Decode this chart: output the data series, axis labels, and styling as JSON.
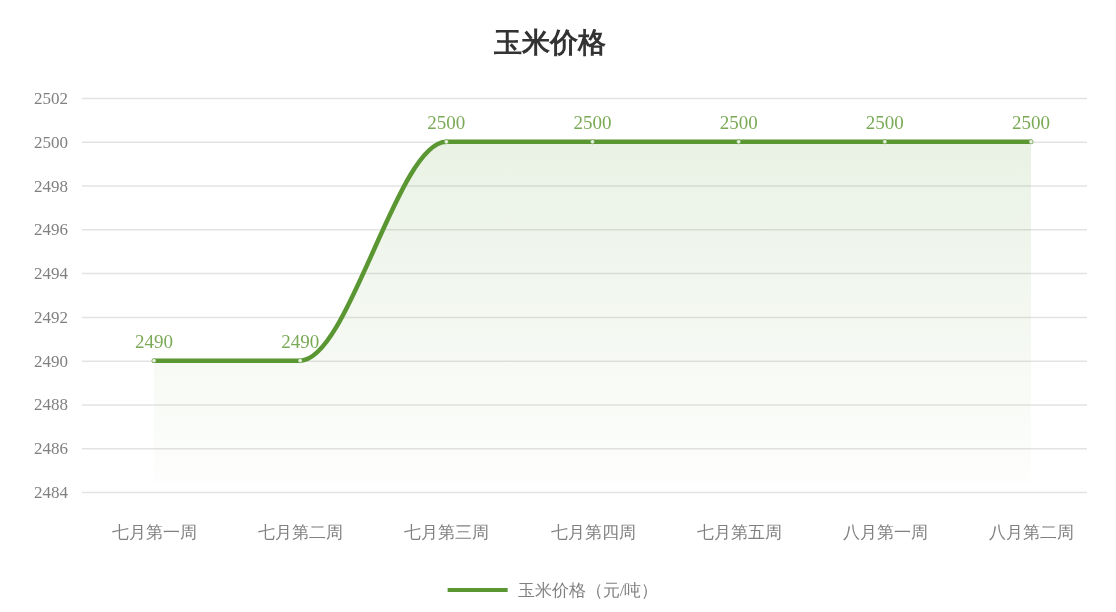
{
  "chart_data": {
    "type": "area",
    "title": "玉米价格",
    "categories": [
      "七月第一周",
      "七月第二周",
      "七月第三周",
      "七月第四周",
      "七月第五周",
      "八月第一周",
      "八月第二周"
    ],
    "series": [
      {
        "name": "玉米价格（元/吨）",
        "color": "#5a9632",
        "values": [
          2490,
          2490,
          2500,
          2500,
          2500,
          2500,
          2500
        ]
      }
    ],
    "ylim": [
      2484,
      2502
    ],
    "yticks": [
      2484,
      2486,
      2488,
      2490,
      2492,
      2494,
      2496,
      2498,
      2500,
      2502
    ],
    "grid": "y",
    "legend": "bottom",
    "data_labels": true,
    "marker": "circle",
    "line_style": "solid"
  }
}
